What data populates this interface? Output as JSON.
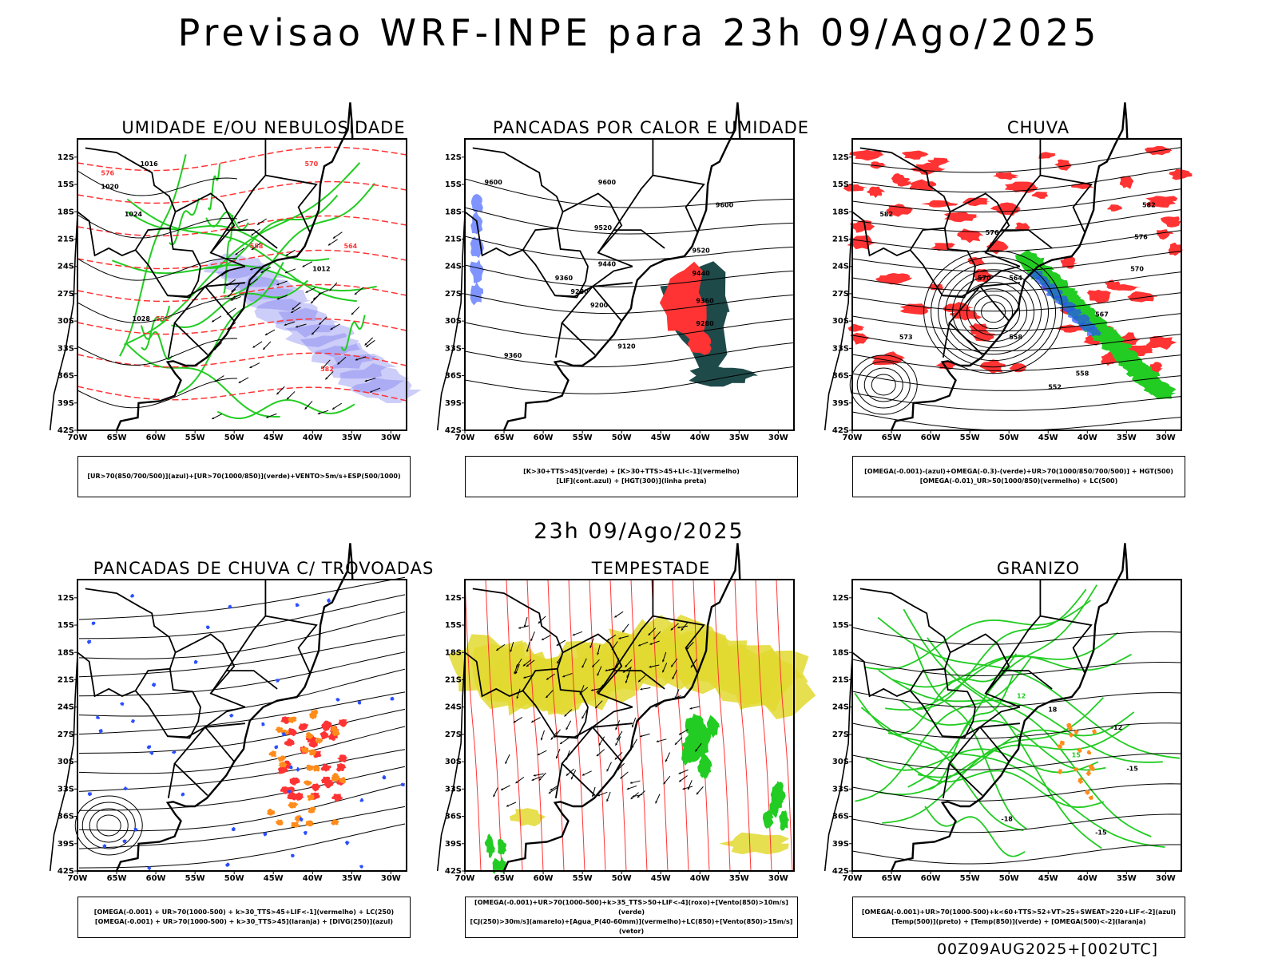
{
  "main_title": "Previsao WRF-INPE  para 23h 09/Ago/2025",
  "mid_title": "23h 09/Ago/2025",
  "footer": "00Z09AUG2025+[002UTC]",
  "lat_ticks": [
    "12S",
    "15S",
    "18S",
    "21S",
    "24S",
    "27S",
    "30S",
    "33S",
    "36S",
    "39S",
    "42S"
  ],
  "lon_ticks": [
    "70W",
    "65W",
    "60W",
    "55W",
    "50W",
    "45W",
    "40W",
    "35W",
    "30W"
  ],
  "panels": [
    {
      "title": "UMIDADE E/OU NEBULOSIDADE",
      "legend": [
        "[UR>70(850/700/500)](azul)+[UR>70(1000/850)](verde)+VENTO>5m/s+ESP(500/1000)"
      ],
      "labels": [
        "1016",
        "1020",
        "1024",
        "1028",
        "1012",
        "570",
        "576",
        "582",
        "552",
        "546",
        "558",
        "564"
      ]
    },
    {
      "title": "PANCADAS POR CALOR E UMIDADE",
      "legend": [
        "[K>30+TTS>45](verde) + [K>30+TTS>45+LI<-1](vermelho)",
        "[LIF](cont.azul) + [HGT(300)](linha preta)"
      ],
      "labels": [
        "9600",
        "9520",
        "9440",
        "9360",
        "9280",
        "9200",
        "9120"
      ]
    },
    {
      "title": "CHUVA",
      "legend": [
        "[OMEGA(-0.001)-(azul)+OMEGA(-0.3)-(verde)+UR>70(1000/850/700/500)] + HGT(500)",
        "[OMEGA(-0.01)_UR>50(1000/850)(vermelho) + LC(500)"
      ],
      "labels": [
        "582",
        "576",
        "570",
        "564",
        "558",
        "552",
        "573",
        "567"
      ]
    },
    {
      "title": "PANCADAS DE CHUVA C/ TROVOADAS",
      "legend": [
        "[OMEGA(-0.001) + UR>70(1000-500) + k>30_TTS>45+LIF<-1](vermelho) + LC(250)",
        "[OMEGA(-0.001) + UR>70(1000-500) + k>30_TTS>45](laranja) + [DIVG(250)](azul)"
      ],
      "labels": []
    },
    {
      "title": "TEMPESTADE",
      "legend": [
        "[OMEGA(-0.001)+UR>70(1000-500)+k>35_TTS>50+LIF<-4](roxo)+[Vento(850)>10m/s](verde)",
        "[CJ(250)>30m/s](amarelo)+[Agua_P(40-60mm)](vermelho)+LC(850)+[Vento(850)>15m/s](vetor)"
      ],
      "labels": []
    },
    {
      "title": "GRANIZO",
      "legend": [
        "[OMEGA(-0.001)+UR>70(1000-500)+k<60+TTS>52+VT>25+SWEAT>220+LIF<-2](azul)",
        "[Temp(500)](preto) + [Temp(850)](verde) + [OMEGA(500)<-2](laranja)"
      ],
      "labels": [
        "-12",
        "-15",
        "-18",
        "12",
        "15",
        "18"
      ]
    }
  ],
  "colors": {
    "map_outline": "#000000",
    "green_contour": "#22cc22",
    "red_contour": "#ff3333",
    "blue_humidity": "#7070ee",
    "dark_teal": "#1f4a4a",
    "yellow_jet": "#e2d930",
    "orange": "#ff8c1a",
    "blue_div": "#2a4dff"
  }
}
